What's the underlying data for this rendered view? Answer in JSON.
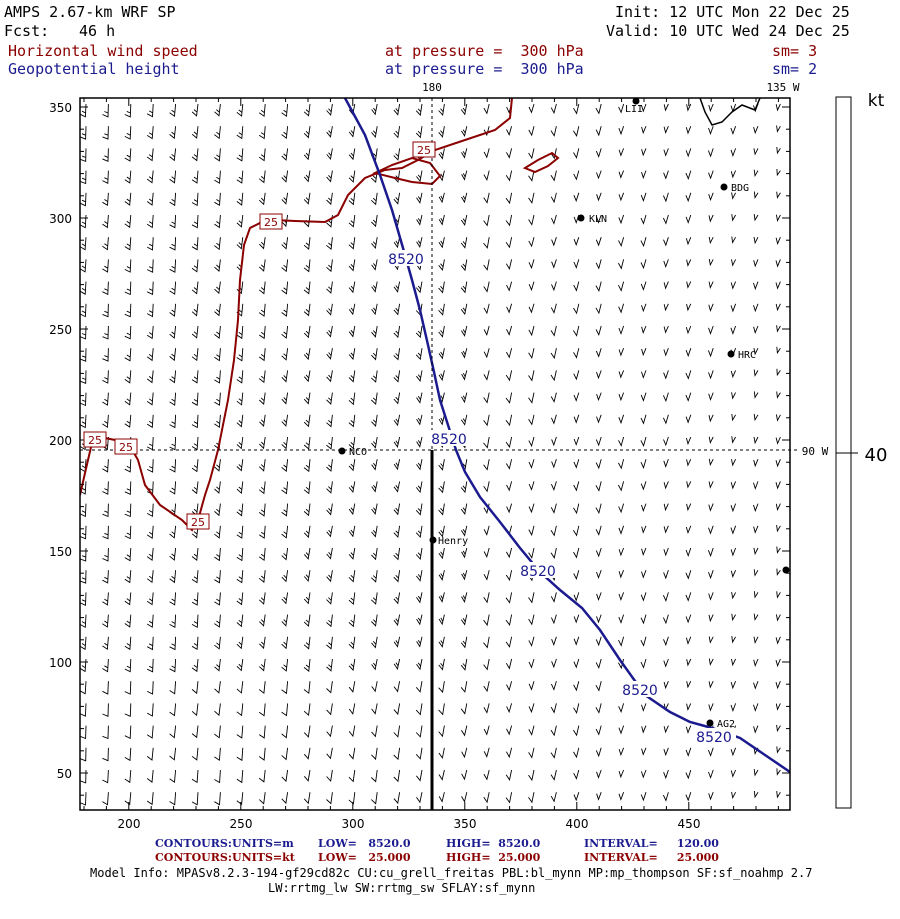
{
  "header": {
    "model": "AMPS 2.67-km WRF SP",
    "fcst_label": "Fcst:",
    "fcst_value": "46 h",
    "init": "Init: 12 UTC Mon 22 Dec 25",
    "valid": "Valid: 10 UTC Wed 24 Dec 25",
    "field1": "Horizontal wind speed",
    "field1_level": "at pressure =  300 hPa",
    "field1_sm": "sm= 3",
    "field2": "Geopotential height",
    "field2_level": "at pressure =  300 hPa",
    "field2_sm": "sm= 2",
    "colors": {
      "red": "#8b0000",
      "blue": "#1b1b8f"
    }
  },
  "map": {
    "x_ticks": [
      "200",
      "250",
      "300",
      "350",
      "400",
      "450"
    ],
    "y_ticks": [
      "350",
      "300",
      "250",
      "200",
      "150",
      "100",
      "50"
    ],
    "lon_labels": {
      "top_180": "180",
      "top_135w": "135 W",
      "right_90w": "90 W"
    },
    "stations": [
      "LII",
      "BDG",
      "KLN",
      "HRC",
      "NCO",
      "Henry",
      "AG2"
    ],
    "height_contour_label": "8520",
    "wind_contour_label": "25",
    "colorbar": {
      "unit": "kt",
      "value": "40"
    }
  },
  "footer": {
    "row1": {
      "label": "CONTOURS:",
      "units": "UNITS=m",
      "low": "LOW=   8520.0",
      "high": "HIGH=  8520.0",
      "interval": "INTERVAL=     120.00"
    },
    "row2": {
      "label": "CONTOURS:",
      "units": "UNITS=kt",
      "low": "LOW=   25.000",
      "high": "HIGH=  25.000",
      "interval": "INTERVAL=     25.000"
    },
    "model_info_1": "Model Info: MPASv8.2.3-194-gf29cd82c CU:cu_grell_freitas PBL:bl_mynn MP:mp_thompson SF:sf_noahmp 2.7",
    "model_info_2": "LW:rrtmg_lw SW:rrtmg_sw SFLAY:sf_mynn"
  }
}
